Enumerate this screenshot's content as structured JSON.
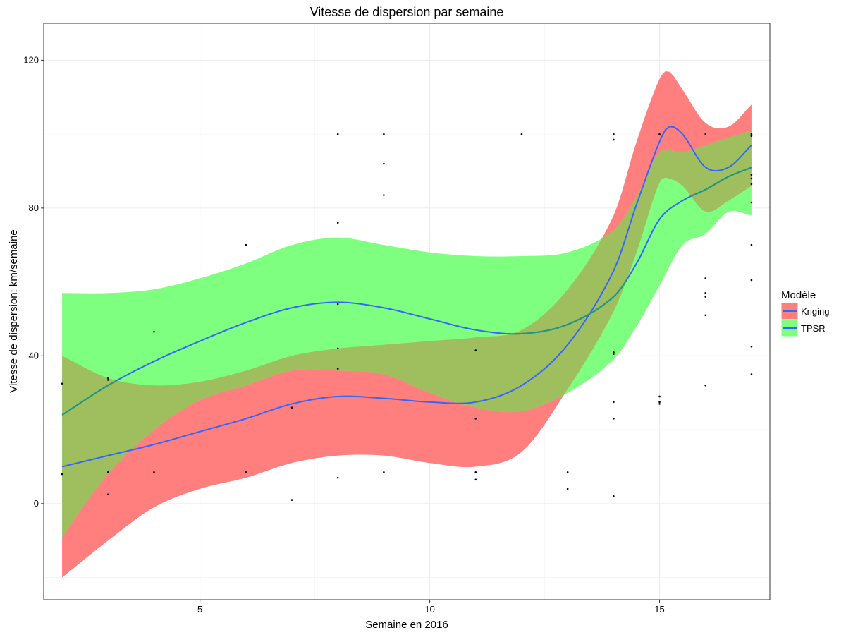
{
  "chart_data": {
    "type": "line",
    "title": "Vitesse de dispersion par semaine",
    "xlabel": "Semaine en 2016",
    "ylabel": "Vitesse de dispersion: km/semaine",
    "xlim": [
      1.6,
      17.4
    ],
    "ylim": [
      -26,
      130
    ],
    "x_ticks": [
      5,
      10,
      15
    ],
    "y_ticks": [
      0,
      40,
      80,
      120
    ],
    "grid": true,
    "legend": {
      "title": "Modèle",
      "position": "right",
      "entries": [
        "Kriging",
        "TPSR"
      ]
    },
    "colors": {
      "kriging_band": "#FF7F7F",
      "tpsr_band": "#7FFF7F",
      "overlap_band": "#9FBF5F",
      "line": "#3366FF",
      "line_tpsr_in_overlap": "#1A9980",
      "points": "#000000",
      "grid": "#EBEBEB",
      "border": "#333333"
    },
    "series": [
      {
        "name": "Kriging",
        "x": [
          2,
          3,
          4,
          5,
          6,
          7,
          8,
          9,
          10,
          11,
          12,
          13,
          14,
          14.5,
          15,
          15.2,
          15.5,
          16,
          16.5,
          17
        ],
        "y": [
          10,
          13,
          16,
          19.5,
          23,
          27,
          29,
          28.5,
          27.5,
          27.5,
          32,
          43,
          63,
          81,
          98,
          102,
          100,
          91,
          91,
          97
        ],
        "lower": [
          -20,
          -10,
          -1,
          4,
          7,
          11,
          13,
          13,
          11,
          10,
          14,
          31,
          52,
          68,
          87,
          88,
          86,
          79,
          82,
          86
        ],
        "upper": [
          40,
          34,
          32,
          33,
          36,
          40,
          42,
          43,
          44,
          45,
          47,
          58,
          78,
          98,
          115,
          117,
          112,
          103,
          102,
          108
        ]
      },
      {
        "name": "TPSR",
        "x": [
          2,
          3,
          4,
          5,
          6,
          7,
          8,
          9,
          10,
          11,
          12,
          13,
          14,
          14.5,
          15,
          15.5,
          16,
          16.5,
          17
        ],
        "y": [
          24,
          32,
          38.5,
          44,
          49,
          53,
          54.5,
          53,
          50,
          47,
          46,
          48.5,
          56,
          65,
          77,
          82,
          85,
          88.5,
          91
        ],
        "lower": [
          -9,
          8,
          20,
          28,
          32,
          36,
          36,
          35,
          30,
          26,
          25,
          30,
          39,
          48,
          59,
          70,
          73,
          79,
          78
        ],
        "upper": [
          57,
          57,
          58,
          61,
          65,
          70,
          72,
          70,
          68,
          67,
          67,
          68,
          74,
          83,
          95,
          95,
          97,
          99,
          101
        ]
      }
    ],
    "points": [
      [
        2,
        8
      ],
      [
        2,
        32.5
      ],
      [
        3,
        2.5
      ],
      [
        3,
        8.5
      ],
      [
        3,
        33.5
      ],
      [
        3,
        34
      ],
      [
        4,
        8.5
      ],
      [
        4,
        46.5
      ],
      [
        6,
        8.5
      ],
      [
        6,
        70
      ],
      [
        7,
        1
      ],
      [
        7,
        26
      ],
      [
        8,
        7
      ],
      [
        8,
        36.5
      ],
      [
        8,
        42
      ],
      [
        8,
        54
      ],
      [
        8,
        76
      ],
      [
        8,
        100
      ],
      [
        9,
        8.5
      ],
      [
        9,
        83.5
      ],
      [
        9,
        92
      ],
      [
        9,
        100
      ],
      [
        11,
        6.5
      ],
      [
        11,
        8.5
      ],
      [
        11,
        23
      ],
      [
        11,
        41.5
      ],
      [
        12,
        100
      ],
      [
        13,
        4
      ],
      [
        13,
        8.5
      ],
      [
        14,
        2
      ],
      [
        14,
        23
      ],
      [
        14,
        27.5
      ],
      [
        14,
        40.5
      ],
      [
        14,
        41
      ],
      [
        14,
        98.5
      ],
      [
        14,
        100
      ],
      [
        15,
        27
      ],
      [
        15,
        27.5
      ],
      [
        15,
        29
      ],
      [
        15,
        100
      ],
      [
        16,
        32
      ],
      [
        16,
        51
      ],
      [
        16,
        56
      ],
      [
        16,
        57
      ],
      [
        16,
        61
      ],
      [
        16,
        100
      ],
      [
        17,
        35
      ],
      [
        17,
        42.5
      ],
      [
        17,
        60.5
      ],
      [
        17,
        70
      ],
      [
        17,
        81.5
      ],
      [
        17,
        86.5
      ],
      [
        17,
        88
      ],
      [
        17,
        89
      ],
      [
        17,
        99.5
      ],
      [
        17,
        100
      ]
    ]
  }
}
